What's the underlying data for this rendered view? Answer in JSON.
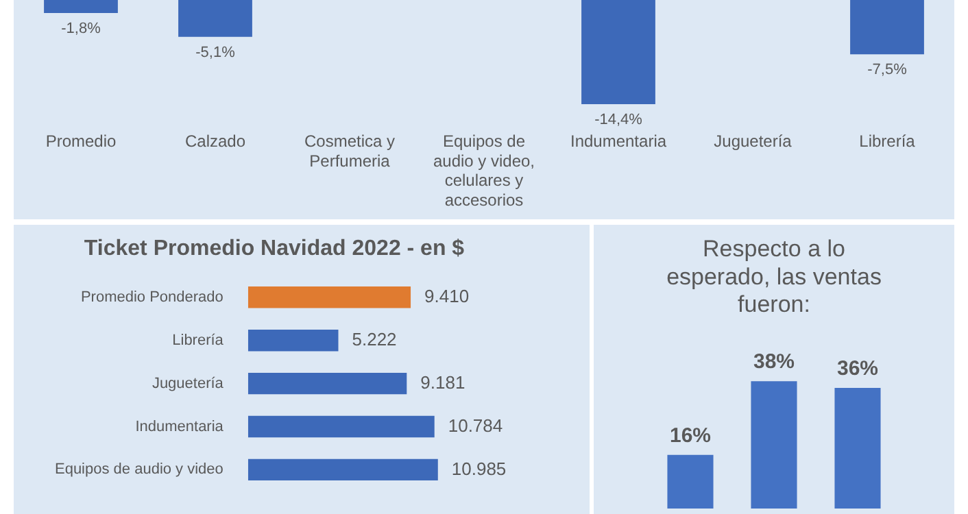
{
  "chart_data": [
    {
      "type": "bar",
      "categories": [
        "Promedio",
        "Calzado",
        "Cosmetica y Perfumeria",
        "Equipos de audio y video, celulares y accesorios",
        "Indumentaria",
        "Juguetería",
        "Librería"
      ],
      "values": [
        -1.8,
        -5.1,
        null,
        null,
        -14.4,
        null,
        -7.5
      ],
      "value_labels": [
        "-1,8%",
        "-5,1%",
        null,
        null,
        "-14,4%",
        null,
        "-7,5%"
      ],
      "color": "#3d69b9",
      "tick_labels": "x"
    },
    {
      "type": "bar",
      "orientation": "horizontal",
      "title": "Ticket Promedio Navidad 2022 - en $",
      "categories": [
        "Promedio Ponderado",
        "Librería",
        "Juguetería",
        "Indumentaria",
        "Equipos de audio y video"
      ],
      "values": [
        9410,
        5222,
        9181,
        10784,
        10985
      ],
      "value_labels": [
        "9.410",
        "5.222",
        "9.181",
        "10.784",
        "10.985"
      ],
      "colors": [
        "#e07b30",
        "#3d69b9",
        "#3d69b9",
        "#3d69b9",
        "#3d69b9"
      ],
      "tick_labels": "y"
    },
    {
      "type": "bar",
      "title": "Respecto a lo esperado, las ventas fueron:",
      "categories": [
        null,
        null,
        null
      ],
      "values": [
        16,
        38,
        36
      ],
      "value_labels": [
        "16%",
        "38%",
        "36%"
      ],
      "color": "#4472c4",
      "tick_labels": false
    }
  ]
}
